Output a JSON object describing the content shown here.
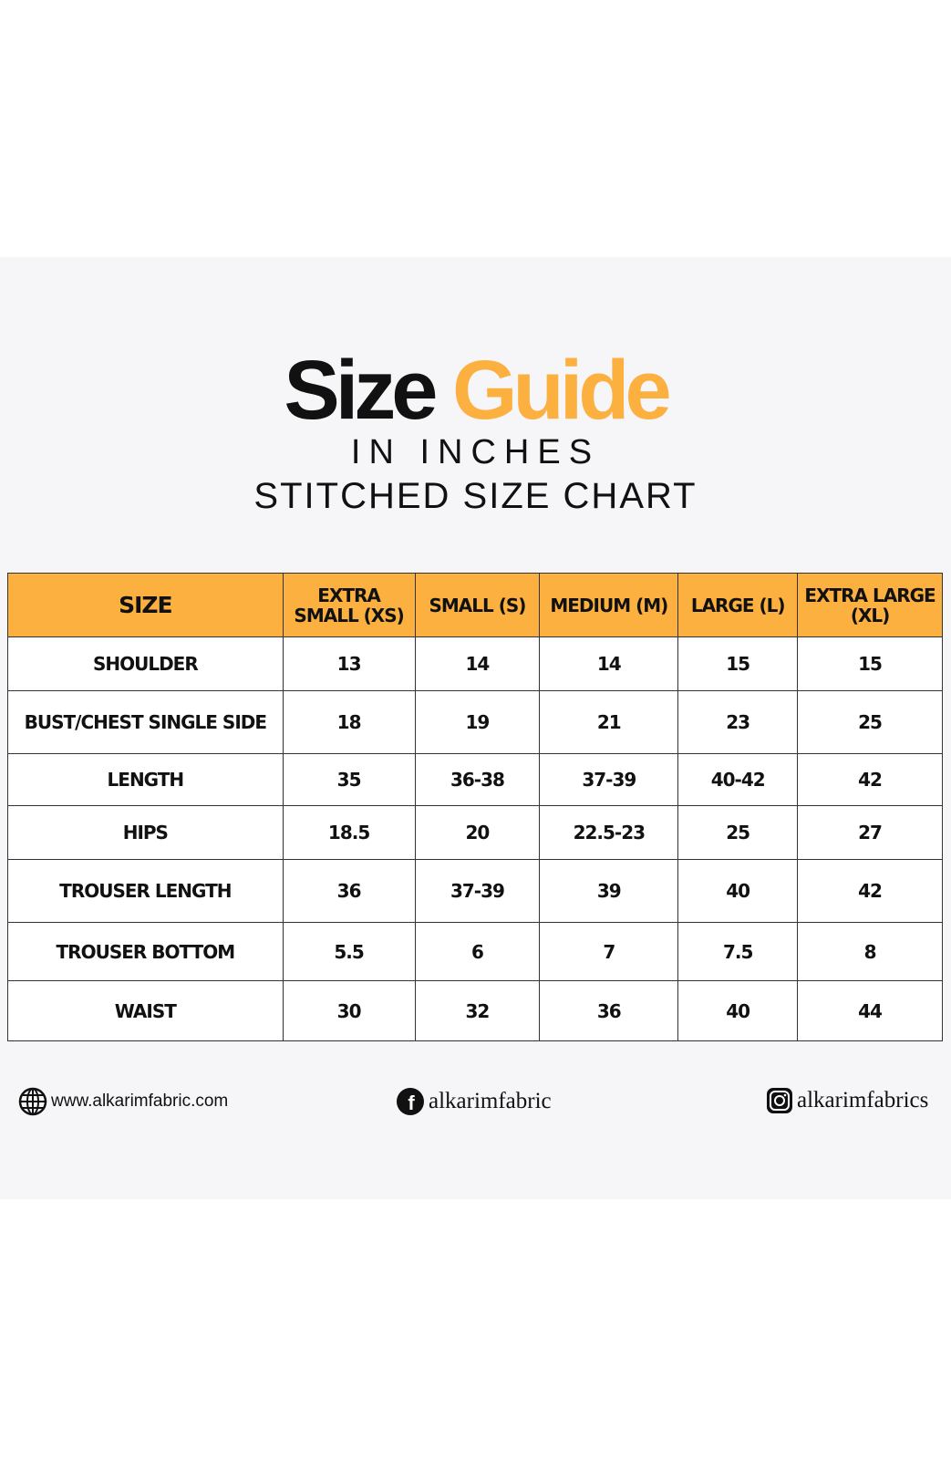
{
  "title": {
    "part1": "Size",
    "part2": "Guide"
  },
  "subtitle1": "IN INCHES",
  "subtitle2": "STITCHED SIZE CHART",
  "colors": {
    "accent": "#fbb040",
    "panel": "#f6f6f8"
  },
  "table": {
    "headers": [
      "SIZE",
      "EXTRA SMALL (XS)",
      "SMALL (S)",
      "MEDIUM (M)",
      "LARGE (L)",
      "EXTRA LARGE (XL)"
    ],
    "rows": [
      [
        "SHOULDER",
        "13",
        "14",
        "14",
        "15",
        "15"
      ],
      [
        "BUST/CHEST SINGLE SIDE",
        "18",
        "19",
        "21",
        "23",
        "25"
      ],
      [
        "LENGTH",
        "35",
        "36-38",
        "37-39",
        "40-42",
        "42"
      ],
      [
        "HIPS",
        "18.5",
        "20",
        "22.5-23",
        "25",
        "27"
      ],
      [
        "TROUSER LENGTH",
        "36",
        "37-39",
        "39",
        "40",
        "42"
      ],
      [
        "TROUSER BOTTOM",
        "5.5",
        "6",
        "7",
        "7.5",
        "8"
      ],
      [
        "WAIST",
        "30",
        "32",
        "36",
        "40",
        "44"
      ]
    ]
  },
  "footer": {
    "website": {
      "icon": "globe-icon",
      "text": "www.alkarimfabric.com"
    },
    "facebook": {
      "icon": "facebook-icon",
      "text": "alkarimfabric"
    },
    "instagram": {
      "icon": "instagram-icon",
      "text": "alkarimfabrics"
    }
  }
}
